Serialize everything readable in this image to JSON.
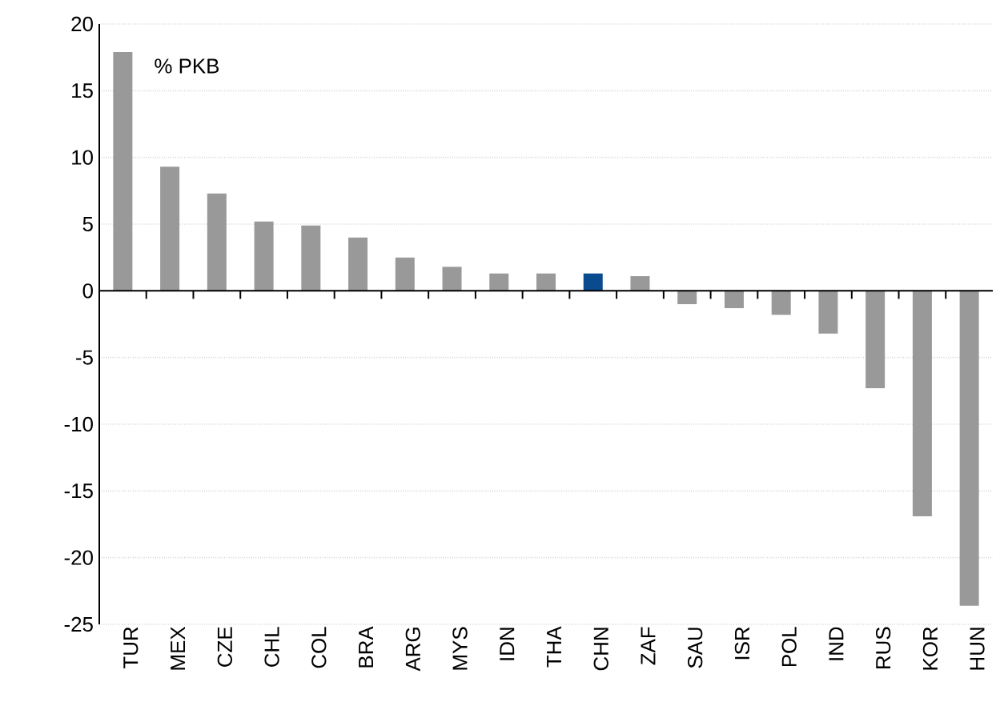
{
  "chart_data": {
    "type": "bar",
    "ylabel": "% PKB",
    "categories": [
      "TUR",
      "MEX",
      "CZE",
      "CHL",
      "COL",
      "BRA",
      "ARG",
      "MYS",
      "IDN",
      "THA",
      "CHN",
      "ZAF",
      "SAU",
      "ISR",
      "POL",
      "IND",
      "RUS",
      "KOR",
      "HUN"
    ],
    "values": [
      17.9,
      9.3,
      7.3,
      5.2,
      4.9,
      4.0,
      2.5,
      1.8,
      1.3,
      1.3,
      1.3,
      1.1,
      -1.0,
      -1.3,
      -1.8,
      -3.2,
      -7.3,
      -16.9,
      -23.6
    ],
    "colors": [
      "#999999",
      "#999999",
      "#999999",
      "#999999",
      "#999999",
      "#999999",
      "#999999",
      "#999999",
      "#999999",
      "#999999",
      "#0a4a8f",
      "#999999",
      "#999999",
      "#999999",
      "#999999",
      "#999999",
      "#999999",
      "#999999",
      "#999999"
    ],
    "ylim": [
      -25,
      20
    ],
    "yticks": [
      -25,
      -20,
      -15,
      -10,
      -5,
      0,
      5,
      10,
      15,
      20
    ],
    "grid": "y"
  }
}
